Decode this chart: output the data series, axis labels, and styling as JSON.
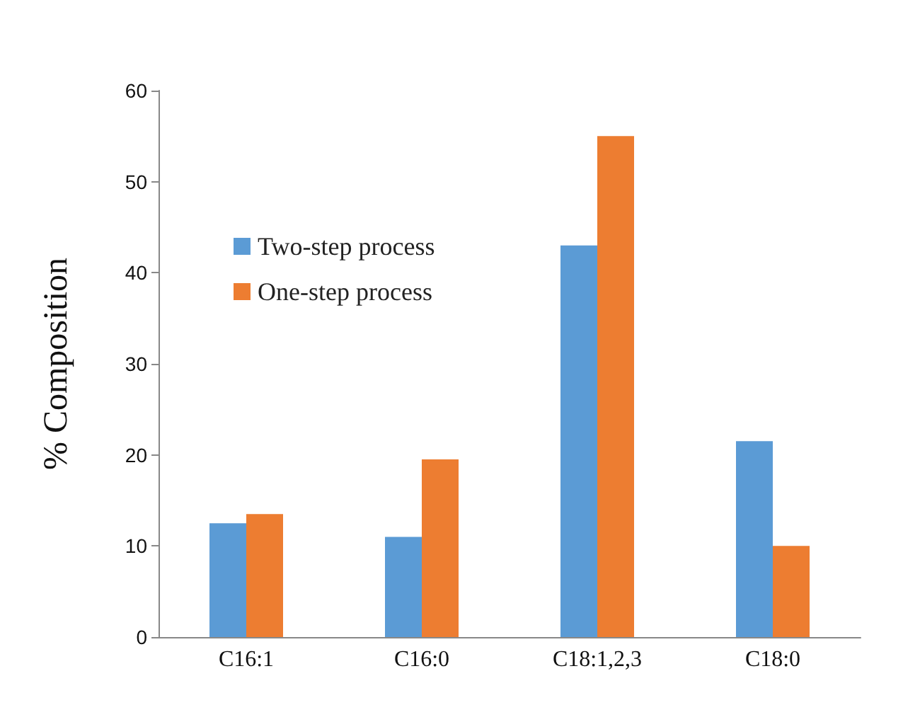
{
  "chart_data": {
    "type": "bar",
    "ylabel": "% Composition",
    "categories": [
      "C16:1",
      "C16:0",
      "C18:1,2,3",
      "C18:0"
    ],
    "series": [
      {
        "name": "Two-step process",
        "color": "#5b9bd5",
        "values": [
          12.5,
          11,
          43,
          21.5
        ]
      },
      {
        "name": "One-step process",
        "color": "#ed7d31",
        "values": [
          13.5,
          19.5,
          55,
          10
        ]
      }
    ],
    "ylim": [
      0,
      60
    ],
    "yticks": [
      0,
      10,
      20,
      30,
      40,
      50,
      60
    ],
    "grid": false,
    "legend": "top left"
  }
}
